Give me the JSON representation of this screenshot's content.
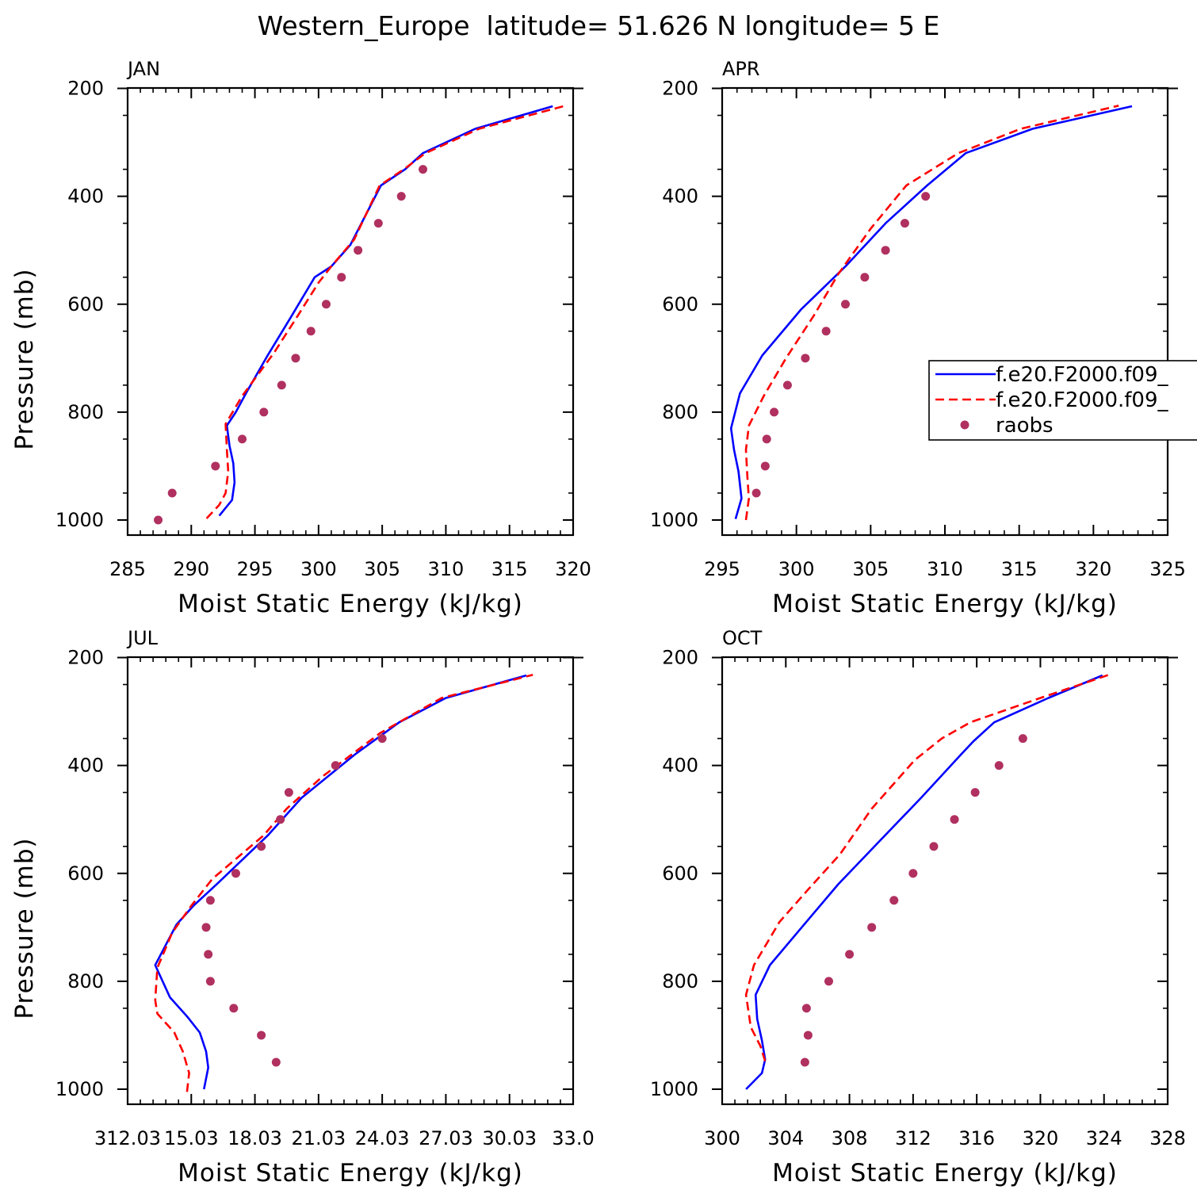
{
  "title": "Western_Europe  latitude= 51.626 N longitude= 5 E",
  "colors": {
    "model1": "#0000ff",
    "model2": "#ff0000",
    "raobs": "#b03060"
  },
  "legend": {
    "model1_label": "f.e20.F2000.f09_",
    "model2_label": "f.e20.F2000.f09_",
    "raobs_label": "raobs"
  },
  "chart_data": [
    {
      "type": "line",
      "panel_label": "JAN",
      "xlabel": "Moist Static Energy (kJ/kg)",
      "ylabel": "Pressure (mb)",
      "xlim": [
        285,
        320
      ],
      "ylim": [
        1000,
        200
      ],
      "xticks": [
        285,
        290,
        295,
        300,
        305,
        310,
        315,
        320
      ],
      "xtick_labels": [
        "285",
        "290",
        "295",
        "300",
        "305",
        "310",
        "315",
        "320"
      ],
      "yticks": [
        1000,
        800,
        600,
        400,
        200
      ],
      "ytick_labels": [
        "1000",
        "800",
        "600",
        "400",
        "200"
      ],
      "show_legend": false,
      "series": [
        {
          "key": "model1",
          "style": "solid",
          "points": [
            [
              292.2,
              992
            ],
            [
              293.2,
              963
            ],
            [
              293.4,
              930
            ],
            [
              293.3,
              895
            ],
            [
              293.0,
              862
            ],
            [
              292.8,
              825
            ],
            [
              293.5,
              800
            ],
            [
              294.3,
              765
            ],
            [
              296.0,
              695
            ],
            [
              297.8,
              625
            ],
            [
              299.7,
              550
            ],
            [
              301.0,
              530
            ],
            [
              302.5,
              490
            ],
            [
              304.9,
              380
            ],
            [
              306.8,
              350
            ],
            [
              308.2,
              320
            ],
            [
              312.3,
              275
            ],
            [
              318.4,
              233
            ]
          ]
        },
        {
          "key": "model2",
          "style": "dashed",
          "points": [
            [
              291.2,
              997
            ],
            [
              292.2,
              972
            ],
            [
              292.7,
              950
            ],
            [
              292.9,
              910
            ],
            [
              292.8,
              870
            ],
            [
              292.7,
              822
            ],
            [
              294.0,
              770
            ],
            [
              296.5,
              690
            ],
            [
              298.4,
              620
            ],
            [
              300.0,
              560
            ],
            [
              301.0,
              530
            ],
            [
              302.8,
              480
            ],
            [
              304.8,
              380
            ],
            [
              306.7,
              350
            ],
            [
              308.4,
              320
            ],
            [
              312.6,
              275
            ],
            [
              319.4,
              232
            ]
          ]
        }
      ],
      "raobs": [
        [
          287.4,
          1000
        ],
        [
          288.5,
          950
        ],
        [
          291.9,
          900
        ],
        [
          294.0,
          850
        ],
        [
          295.7,
          800
        ],
        [
          297.1,
          750
        ],
        [
          298.2,
          700
        ],
        [
          299.4,
          650
        ],
        [
          300.6,
          600
        ],
        [
          301.8,
          550
        ],
        [
          303.1,
          500
        ],
        [
          304.7,
          450
        ],
        [
          306.5,
          400
        ],
        [
          308.2,
          350
        ]
      ]
    },
    {
      "type": "line",
      "panel_label": "APR",
      "xlabel": "Moist Static Energy (kJ/kg)",
      "ylabel": "",
      "xlim": [
        295,
        325
      ],
      "ylim": [
        1000,
        200
      ],
      "xticks": [
        295,
        300,
        305,
        310,
        315,
        320,
        325
      ],
      "xtick_labels": [
        "295",
        "300",
        "305",
        "310",
        "315",
        "320",
        "325"
      ],
      "yticks": [
        1000,
        800,
        600,
        400,
        200
      ],
      "ytick_labels": [
        "1000",
        "800",
        "600",
        "400",
        "200"
      ],
      "show_legend": true,
      "series": [
        {
          "key": "model1",
          "style": "solid",
          "points": [
            [
              295.9,
              998
            ],
            [
              296.3,
              960
            ],
            [
              296.1,
              910
            ],
            [
              295.8,
              870
            ],
            [
              295.6,
              830
            ],
            [
              296.2,
              765
            ],
            [
              297.7,
              695
            ],
            [
              300.3,
              610
            ],
            [
              303.3,
              530
            ],
            [
              306.0,
              450
            ],
            [
              308.8,
              380
            ],
            [
              311.4,
              320
            ],
            [
              315.9,
              275
            ],
            [
              322.6,
              233
            ]
          ]
        },
        {
          "key": "model2",
          "style": "dashed",
          "points": [
            [
              296.6,
              1000
            ],
            [
              296.8,
              960
            ],
            [
              296.7,
              920
            ],
            [
              296.6,
              870
            ],
            [
              296.8,
              825
            ],
            [
              297.8,
              770
            ],
            [
              299.3,
              700
            ],
            [
              301.2,
              620
            ],
            [
              302.8,
              545
            ],
            [
              305.0,
              460
            ],
            [
              307.4,
              380
            ],
            [
              310.9,
              320
            ],
            [
              315.1,
              275
            ],
            [
              321.7,
              232
            ]
          ]
        }
      ],
      "raobs": [
        [
          297.3,
          950
        ],
        [
          297.9,
          900
        ],
        [
          298.0,
          850
        ],
        [
          298.5,
          800
        ],
        [
          299.4,
          750
        ],
        [
          300.6,
          700
        ],
        [
          302.0,
          650
        ],
        [
          303.3,
          600
        ],
        [
          304.6,
          550
        ],
        [
          306.0,
          500
        ],
        [
          307.3,
          450
        ],
        [
          308.7,
          400
        ]
      ]
    },
    {
      "type": "line",
      "panel_label": "JUL",
      "xlabel": "Moist Static Energy (kJ/kg)",
      "ylabel": "Pressure (mb)",
      "xlim": [
        312,
        333
      ],
      "ylim": [
        1000,
        200
      ],
      "xticks": [
        312,
        315,
        318,
        321,
        324,
        327,
        330,
        333
      ],
      "xtick_labels": [
        "312.03",
        "15.03",
        "18.03",
        "21.03",
        "24.03",
        "27.03",
        "30.03",
        "33.0"
      ],
      "yticks": [
        1000,
        800,
        600,
        400,
        200
      ],
      "ytick_labels": [
        "1000",
        "800",
        "600",
        "400",
        "200"
      ],
      "show_legend": false,
      "series": [
        {
          "key": "model1",
          "style": "solid",
          "points": [
            [
              315.6,
              1000
            ],
            [
              315.8,
              960
            ],
            [
              315.7,
              930
            ],
            [
              315.4,
              895
            ],
            [
              314.8,
              865
            ],
            [
              314.0,
              830
            ],
            [
              313.3,
              770
            ],
            [
              314.3,
              695
            ],
            [
              315.1,
              660
            ],
            [
              316.2,
              620
            ],
            [
              318.6,
              530
            ],
            [
              320.2,
              460
            ],
            [
              322.7,
              380
            ],
            [
              324.8,
              320
            ],
            [
              327.0,
              275
            ],
            [
              330.8,
              233
            ]
          ]
        },
        {
          "key": "model2",
          "style": "dashed",
          "points": [
            [
              314.8,
              1005
            ],
            [
              314.9,
              970
            ],
            [
              314.6,
              930
            ],
            [
              314.2,
              895
            ],
            [
              313.4,
              860
            ],
            [
              313.3,
              835
            ],
            [
              313.4,
              775
            ],
            [
              314.1,
              710
            ],
            [
              315.0,
              660
            ],
            [
              316.0,
              610
            ],
            [
              318.4,
              530
            ],
            [
              319.5,
              480
            ],
            [
              321.2,
              420
            ],
            [
              323.9,
              340
            ],
            [
              326.8,
              275
            ],
            [
              331.1,
              232
            ]
          ]
        }
      ],
      "raobs": [
        [
          319.0,
          950
        ],
        [
          318.3,
          900
        ],
        [
          317.0,
          850
        ],
        [
          315.9,
          800
        ],
        [
          315.8,
          750
        ],
        [
          315.7,
          700
        ],
        [
          315.9,
          650
        ],
        [
          317.1,
          600
        ],
        [
          318.3,
          550
        ],
        [
          319.2,
          500
        ],
        [
          319.6,
          450
        ],
        [
          321.8,
          400
        ],
        [
          324.0,
          350
        ]
      ]
    },
    {
      "type": "line",
      "panel_label": "OCT",
      "xlabel": "Moist Static Energy (kJ/kg)",
      "ylabel": "",
      "xlim": [
        300,
        328
      ],
      "ylim": [
        1000,
        200
      ],
      "xticks": [
        300,
        304,
        308,
        312,
        316,
        320,
        324,
        328
      ],
      "xtick_labels": [
        "300",
        "304",
        "308",
        "312",
        "316",
        "320",
        "324",
        "328"
      ],
      "yticks": [
        1000,
        800,
        600,
        400,
        200
      ],
      "ytick_labels": [
        "1000",
        "800",
        "600",
        "400",
        "200"
      ],
      "show_legend": false,
      "series": [
        {
          "key": "model1",
          "style": "solid",
          "points": [
            [
              301.5,
              1000
            ],
            [
              302.5,
              970
            ],
            [
              302.7,
              945
            ],
            [
              302.5,
              910
            ],
            [
              302.2,
              870
            ],
            [
              302.1,
              825
            ],
            [
              303.0,
              770
            ],
            [
              305.0,
              700
            ],
            [
              307.3,
              620
            ],
            [
              309.9,
              540
            ],
            [
              312.5,
              460
            ],
            [
              315.0,
              380
            ],
            [
              315.8,
              355
            ],
            [
              317.1,
              320
            ],
            [
              320.5,
              275
            ],
            [
              323.9,
              233
            ]
          ]
        },
        {
          "key": "model2",
          "style": "dashed",
          "points": [
            [
              302.7,
              948
            ],
            [
              302.4,
              920
            ],
            [
              301.8,
              885
            ],
            [
              301.5,
              825
            ],
            [
              302.0,
              770
            ],
            [
              303.6,
              690
            ],
            [
              305.4,
              630
            ],
            [
              307.4,
              565
            ],
            [
              309.4,
              480
            ],
            [
              312.1,
              390
            ],
            [
              313.8,
              350
            ],
            [
              315.6,
              320
            ],
            [
              320.0,
              275
            ],
            [
              324.3,
              232
            ]
          ]
        }
      ],
      "raobs": [
        [
          305.2,
          950
        ],
        [
          305.4,
          900
        ],
        [
          305.3,
          850
        ],
        [
          306.7,
          800
        ],
        [
          308.0,
          750
        ],
        [
          309.4,
          700
        ],
        [
          310.8,
          650
        ],
        [
          312.0,
          600
        ],
        [
          313.3,
          550
        ],
        [
          314.6,
          500
        ],
        [
          315.9,
          450
        ],
        [
          317.4,
          400
        ],
        [
          318.9,
          350
        ]
      ]
    }
  ]
}
